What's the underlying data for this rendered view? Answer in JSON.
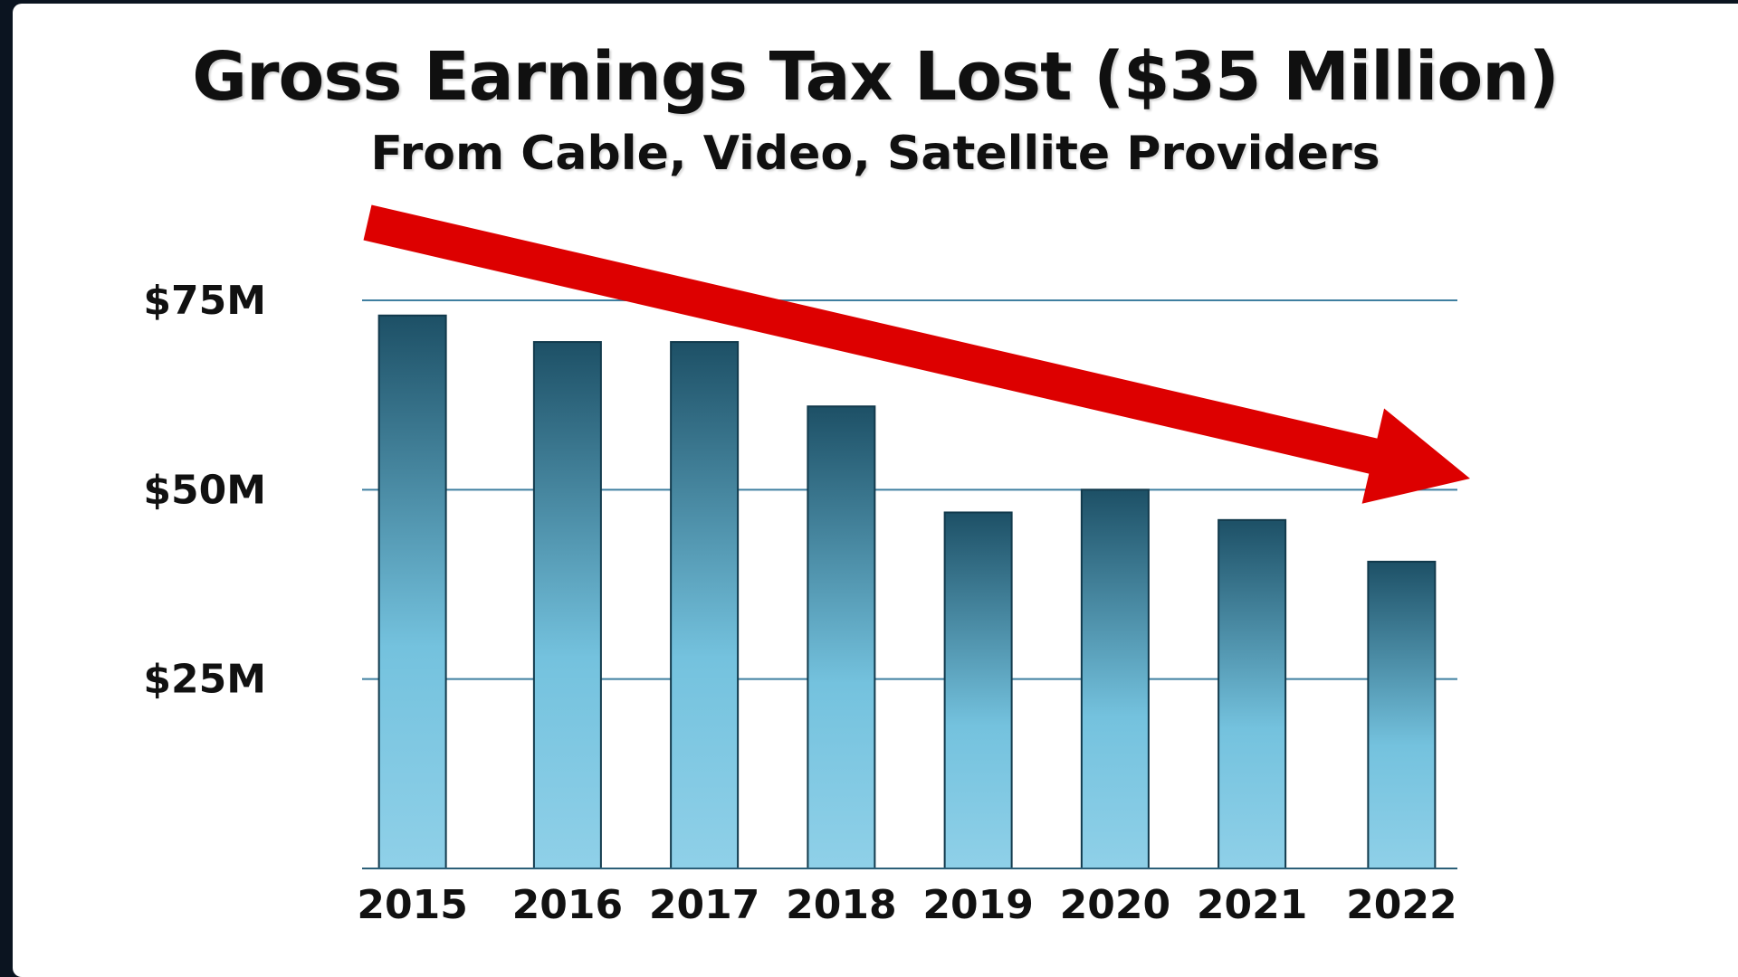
{
  "slide": {
    "title": "Gross Earnings Tax Lost ($35 Million)",
    "subtitle": "From Cable, Video, Satellite Providers"
  },
  "colors": {
    "bar_top": "#1d5066",
    "bar_bottom": "#8fd0e8",
    "gridline": "#3f7fa0",
    "arrow": "#dd0000"
  },
  "trend_arrow": {
    "direction": "down",
    "color": "#dd0000"
  },
  "chart_data": {
    "type": "bar",
    "title": "Gross Earnings Tax Lost ($35 Million)",
    "subtitle": "From Cable, Video, Satellite Providers",
    "categories": [
      "2015",
      "2016",
      "2017",
      "2018",
      "2019",
      "2020",
      "2021",
      "2022"
    ],
    "values": [
      73,
      69.5,
      69.5,
      61,
      47,
      50,
      46,
      40.5
    ],
    "unit": "$M",
    "xlabel": "",
    "ylabel": "",
    "ylim": [
      0,
      75
    ],
    "yticks": [
      {
        "value": 25,
        "label": "$25M"
      },
      {
        "value": 50,
        "label": "$50M"
      },
      {
        "value": 75,
        "label": "$75M"
      }
    ],
    "grid": true,
    "legend": "none"
  }
}
